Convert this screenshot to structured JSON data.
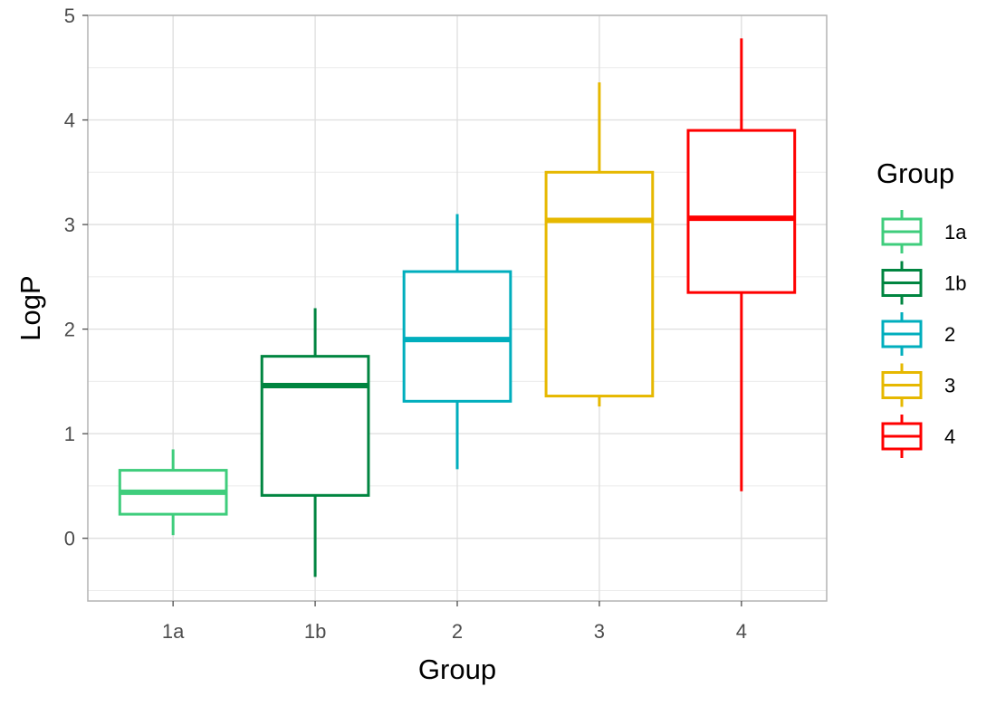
{
  "chart_data": {
    "type": "boxplot",
    "xlabel": "Group",
    "ylabel": "LogP",
    "categories": [
      "1a",
      "1b",
      "2",
      "3",
      "4"
    ],
    "ylim": [
      -0.6,
      5
    ],
    "y_ticks": [
      "0",
      "1",
      "2",
      "3",
      "4",
      "5"
    ],
    "grid": true,
    "legend": {
      "title": "Group",
      "placement": "right",
      "entries": [
        "1a",
        "1b",
        "2",
        "3",
        "4"
      ]
    },
    "colors": [
      "#3fcd7c",
      "#008540",
      "#00aebd",
      "#e6b800",
      "#ff0000"
    ],
    "boxes": [
      {
        "group": "1a",
        "min": 0.03,
        "q1": 0.23,
        "median": 0.44,
        "q3": 0.65,
        "max": 0.85
      },
      {
        "group": "1b",
        "min": -0.37,
        "q1": 0.41,
        "median": 1.46,
        "q3": 1.74,
        "max": 2.2
      },
      {
        "group": "2",
        "min": 0.66,
        "q1": 1.31,
        "median": 1.9,
        "q3": 2.55,
        "max": 3.1
      },
      {
        "group": "3",
        "min": 1.26,
        "q1": 1.36,
        "median": 3.04,
        "q3": 3.5,
        "max": 4.36
      },
      {
        "group": "4",
        "min": 0.45,
        "q1": 2.35,
        "median": 3.06,
        "q3": 3.9,
        "max": 4.78
      }
    ]
  }
}
